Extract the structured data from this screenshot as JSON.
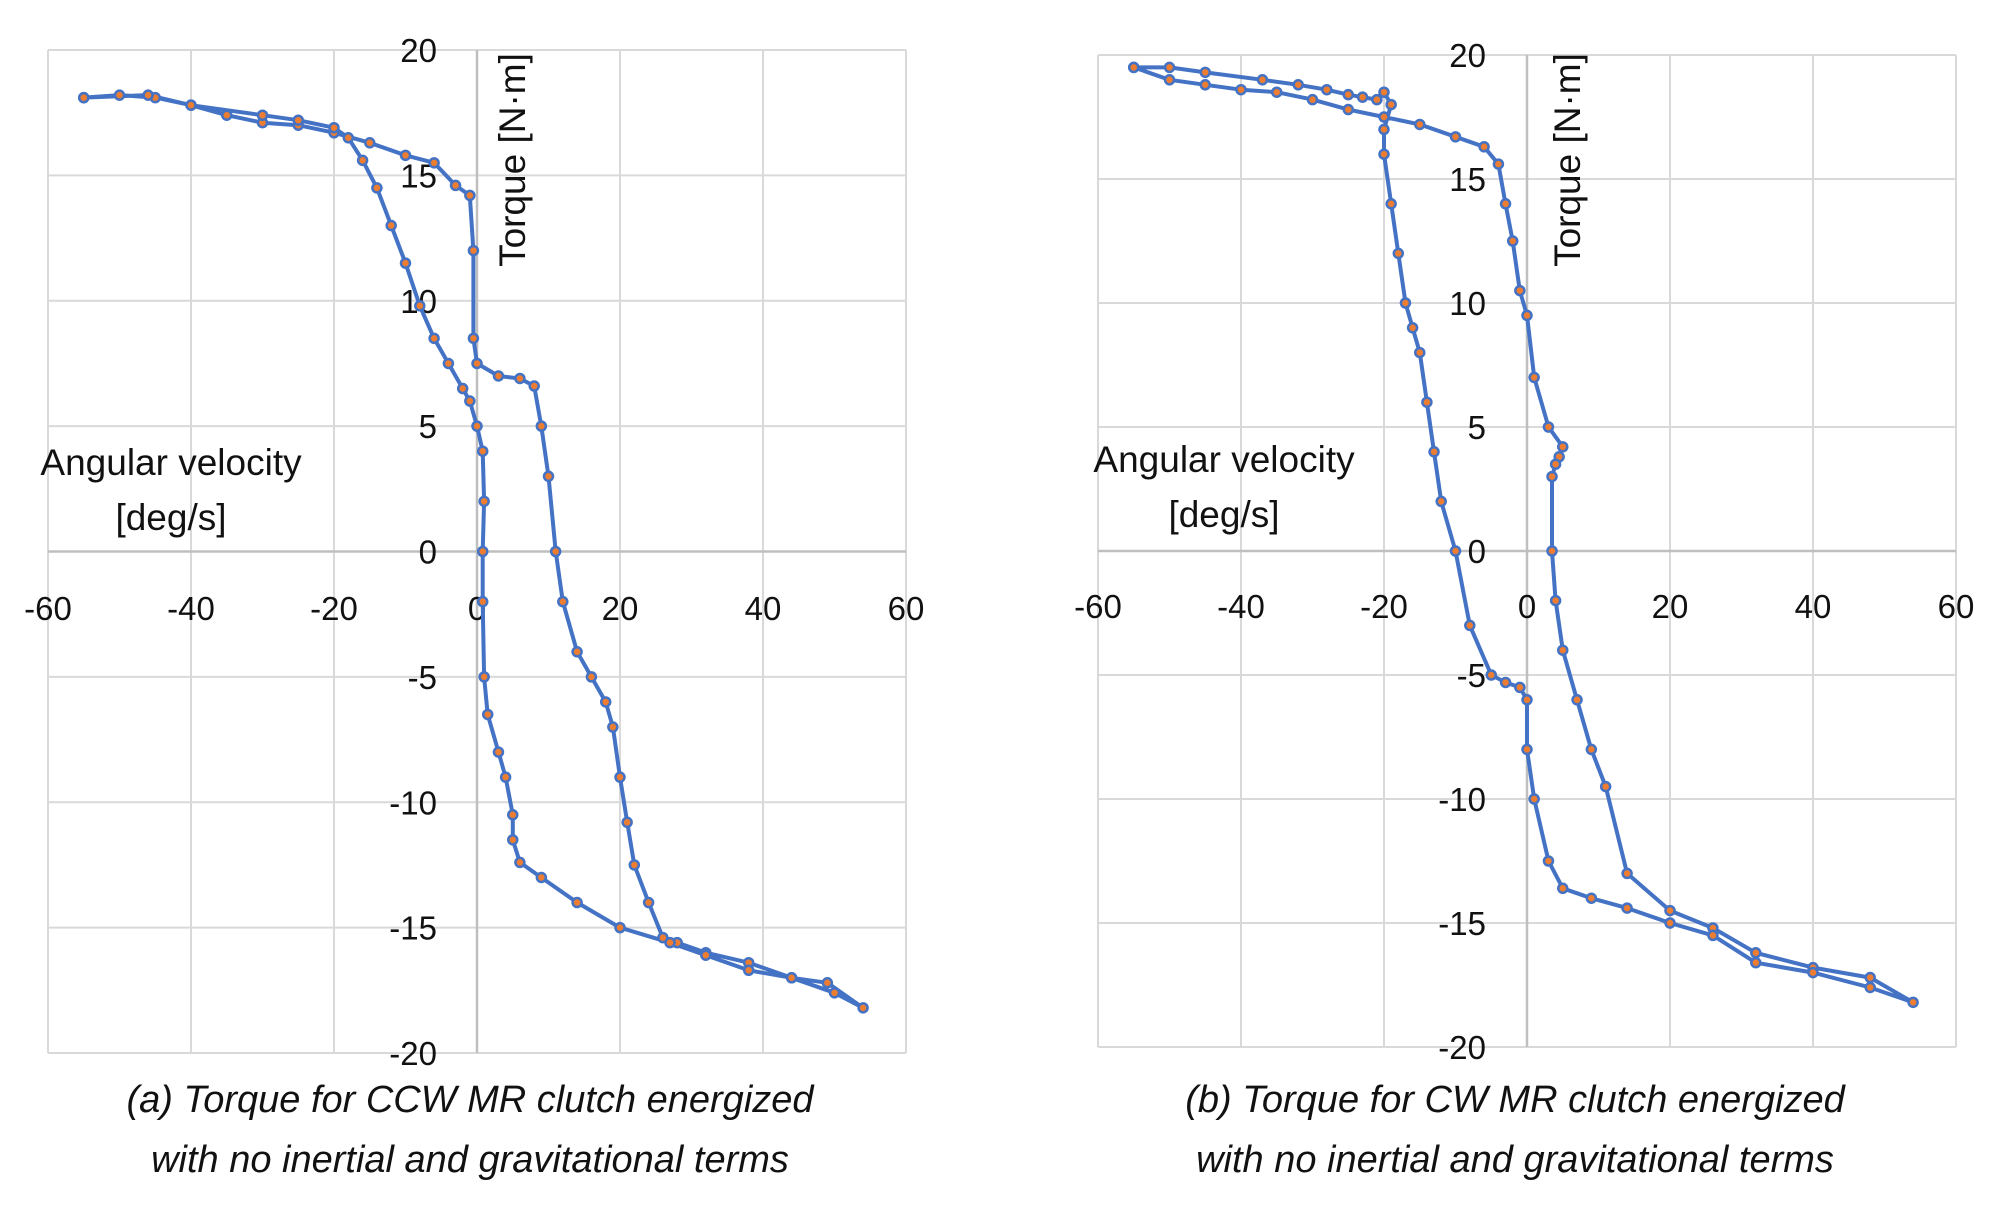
{
  "chart_data": [
    {
      "type": "line",
      "xlabel": "Angular velocity [deg/s]",
      "xlabel_lines": [
        "Angular velocity",
        "[deg/s]"
      ],
      "ylabel": "Torque [N·m]",
      "xlim": [
        -60,
        60
      ],
      "ylim": [
        -20,
        20
      ],
      "xticks": [
        -60,
        -40,
        -20,
        0,
        20,
        40,
        60
      ],
      "yticks": [
        -20,
        -15,
        -10,
        -5,
        0,
        5,
        10,
        15,
        20
      ],
      "grid": true,
      "caption_lines": [
        "(a)   Torque for CCW MR clutch energized",
        "with no inertial and gravitational terms"
      ],
      "series": [
        {
          "color": "#4472C4",
          "marker_color": "#ED7D31",
          "x": [
            -55,
            -50,
            -45,
            -40,
            -35,
            -30,
            -25,
            -20,
            -15,
            -10,
            -6,
            -3,
            -1,
            -0.5,
            -0.5,
            0,
            3,
            6,
            8,
            9,
            10,
            11,
            12,
            14,
            16,
            18,
            19,
            20,
            21,
            22,
            24,
            26,
            28,
            32,
            38,
            44,
            49,
            54,
            50,
            44,
            38,
            32,
            27,
            20,
            14,
            9,
            6,
            5,
            5,
            4,
            3,
            1.5,
            1,
            0.8,
            0.8,
            1,
            0.8,
            0,
            -1,
            -2,
            -4,
            -6,
            -8,
            -10,
            -12,
            -14,
            -16,
            -18,
            -20,
            -25,
            -30,
            -40,
            -46,
            -55
          ],
          "y": [
            18.1,
            18.2,
            18.1,
            17.8,
            17.4,
            17.1,
            17,
            16.7,
            16.3,
            15.8,
            15.5,
            14.6,
            14.2,
            12,
            8.5,
            7.5,
            7,
            6.9,
            6.6,
            5,
            3,
            0,
            -2,
            -4,
            -5,
            -6,
            -7,
            -9,
            -10.8,
            -12.5,
            -14,
            -15.4,
            -15.6,
            -16,
            -16.4,
            -17,
            -17.2,
            -18.2,
            -17.6,
            -17,
            -16.7,
            -16.1,
            -15.6,
            -15,
            -14,
            -13,
            -12.4,
            -11.5,
            -10.5,
            -9,
            -8,
            -6.5,
            -5,
            -2,
            0,
            2,
            4,
            5,
            6,
            6.5,
            7.5,
            8.5,
            9.8,
            11.5,
            13,
            14.5,
            15.6,
            16.5,
            16.9,
            17.2,
            17.4,
            17.8,
            18.2,
            18.1
          ]
        }
      ]
    },
    {
      "type": "line",
      "xlabel": "Angular velocity [deg/s]",
      "xlabel_lines": [
        "Angular velocity",
        "[deg/s]"
      ],
      "ylabel": "Torque [N·m]",
      "xlim": [
        -60,
        60
      ],
      "ylim": [
        -20,
        20
      ],
      "xticks": [
        -60,
        -40,
        -20,
        0,
        20,
        40,
        60
      ],
      "yticks": [
        -20,
        -15,
        -10,
        -5,
        0,
        5,
        10,
        15,
        20
      ],
      "grid": true,
      "caption_lines": [
        "(b)  Torque for CW MR clutch energized",
        "with no inertial and gravitational terms"
      ],
      "series": [
        {
          "color": "#4472C4",
          "marker_color": "#ED7D31",
          "x": [
            -55,
            -50,
            -45,
            -40,
            -35,
            -30,
            -25,
            -20,
            -15,
            -10,
            -6,
            -4,
            -3,
            -2,
            -1,
            0,
            1,
            3,
            5,
            4.5,
            4,
            3.5,
            3.5,
            4,
            5,
            7,
            9,
            11,
            14,
            20,
            26,
            32,
            40,
            48,
            54,
            48,
            40,
            32,
            26,
            20,
            14,
            9,
            5,
            3,
            1,
            0,
            0,
            -1,
            -3,
            -5,
            -8,
            -10,
            -12,
            -13,
            -14,
            -15,
            -16,
            -17,
            -18,
            -19,
            -20,
            -20,
            -19,
            -20,
            -21,
            -23,
            -25,
            -28,
            -32,
            -37,
            -45,
            -50,
            -55
          ],
          "y": [
            19.5,
            19,
            18.8,
            18.6,
            18.5,
            18.2,
            17.8,
            17.5,
            17.2,
            16.7,
            16.3,
            15.6,
            14,
            12.5,
            10.5,
            9.5,
            7,
            5,
            4.2,
            3.8,
            3.5,
            3,
            0,
            -2,
            -4,
            -6,
            -8,
            -9.5,
            -13,
            -14.5,
            -15.2,
            -16.2,
            -16.8,
            -17.2,
            -18.2,
            -17.6,
            -17,
            -16.6,
            -15.5,
            -15,
            -14.4,
            -14,
            -13.6,
            -12.5,
            -10,
            -8,
            -6,
            -5.5,
            -5.3,
            -5,
            -3,
            0,
            2,
            4,
            6,
            8,
            9,
            10,
            12,
            14,
            16,
            17,
            18,
            18.5,
            18.2,
            18.3,
            18.4,
            18.6,
            18.8,
            19,
            19.3,
            19.5,
            19.5
          ]
        }
      ]
    }
  ]
}
